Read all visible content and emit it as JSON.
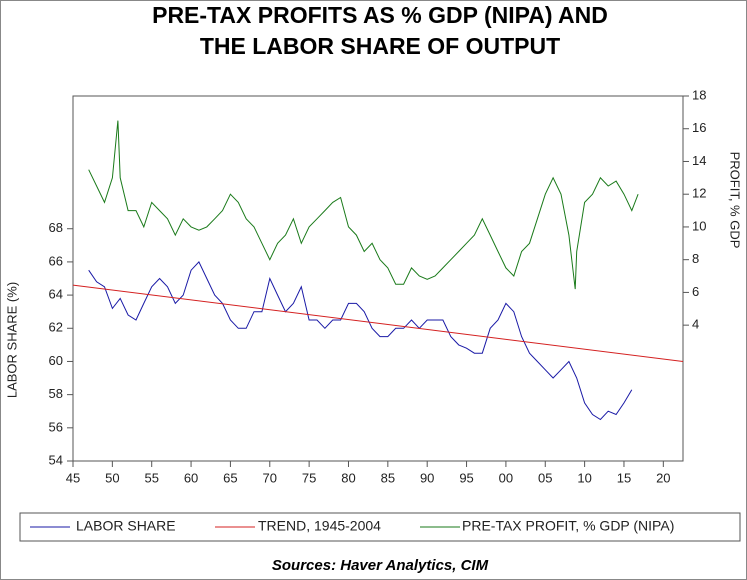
{
  "chart_data": {
    "type": "line",
    "title": [
      "PRE-TAX PROFITS AS % GDP (NIPA) AND",
      "THE LABOR SHARE OF OUTPUT"
    ],
    "ylabel": "LABOR SHARE (%)",
    "y2label": "PROFIT, % GDP",
    "source": "Sources:  Haver Analytics, CIM",
    "xlim": [
      1945,
      2022.5
    ],
    "xticks": [
      {
        "value": 1945,
        "label": "45"
      },
      {
        "value": 1950,
        "label": "50"
      },
      {
        "value": 1955,
        "label": "55"
      },
      {
        "value": 1960,
        "label": "60"
      },
      {
        "value": 1965,
        "label": "65"
      },
      {
        "value": 1970,
        "label": "70"
      },
      {
        "value": 1975,
        "label": "75"
      },
      {
        "value": 1980,
        "label": "80"
      },
      {
        "value": 1985,
        "label": "85"
      },
      {
        "value": 1990,
        "label": "90"
      },
      {
        "value": 1995,
        "label": "95"
      },
      {
        "value": 2000,
        "label": "00"
      },
      {
        "value": 2005,
        "label": "05"
      },
      {
        "value": 2010,
        "label": "10"
      },
      {
        "value": 2015,
        "label": "15"
      },
      {
        "value": 2020,
        "label": "20"
      }
    ],
    "ylim": [
      54,
      76
    ],
    "yticks": [
      54,
      56,
      58,
      60,
      62,
      64,
      66,
      68
    ],
    "y2lim": [
      -4.3,
      18
    ],
    "y2ticks": [
      4,
      6,
      8,
      10,
      12,
      14,
      16,
      18
    ],
    "series": [
      {
        "name": "LABOR SHARE",
        "color": "#1a1aa6",
        "x": [
          1947,
          1948,
          1949,
          1950,
          1951,
          1952,
          1953,
          1954,
          1955,
          1956,
          1957,
          1958,
          1959,
          1960,
          1961,
          1962,
          1963,
          1964,
          1965,
          1966,
          1967,
          1968,
          1969,
          1970,
          1971,
          1972,
          1973,
          1974,
          1975,
          1976,
          1977,
          1978,
          1979,
          1980,
          1981,
          1982,
          1983,
          1984,
          1985,
          1986,
          1987,
          1988,
          1989,
          1990,
          1991,
          1992,
          1993,
          1994,
          1995,
          1996,
          1997,
          1998,
          1999,
          2000,
          2001,
          2002,
          2003,
          2004,
          2005,
          2006,
          2007,
          2008,
          2009,
          2010,
          2011,
          2012,
          2013,
          2014,
          2015,
          2016
        ],
        "values": [
          65.5,
          64.8,
          64.5,
          63.2,
          63.8,
          62.8,
          62.5,
          63.5,
          64.5,
          65.0,
          64.5,
          63.5,
          64.0,
          65.5,
          66.0,
          65.0,
          64.0,
          63.5,
          62.5,
          62.0,
          62.0,
          63.0,
          63.0,
          65.0,
          64.0,
          63.0,
          63.5,
          64.5,
          62.5,
          62.5,
          62.0,
          62.5,
          62.5,
          63.5,
          63.5,
          63.0,
          62.0,
          61.5,
          61.5,
          62.0,
          62.0,
          62.5,
          62.0,
          62.5,
          62.5,
          62.5,
          61.5,
          61.0,
          60.8,
          60.5,
          60.5,
          62.0,
          62.5,
          63.5,
          63.0,
          61.5,
          60.5,
          60.0,
          59.5,
          59.0,
          59.5,
          60.0,
          59.0,
          57.5,
          56.8,
          56.5,
          57.0,
          56.8,
          57.5,
          58.3
        ]
      },
      {
        "name": "TREND, 1945-2004",
        "color": "#d42020",
        "x": [
          1945,
          2022.5
        ],
        "values": [
          64.6,
          60.0
        ]
      },
      {
        "name": "PRE-TAX PROFIT, % GDP (NIPA)",
        "color": "#1a7a1a",
        "axis": "y2",
        "x": [
          1947,
          1948,
          1949,
          1950,
          1950.7,
          1951,
          1952,
          1953,
          1954,
          1955,
          1956,
          1957,
          1958,
          1959,
          1960,
          1961,
          1962,
          1963,
          1964,
          1965,
          1966,
          1967,
          1968,
          1969,
          1970,
          1971,
          1972,
          1973,
          1974,
          1975,
          1976,
          1977,
          1978,
          1979,
          1980,
          1981,
          1982,
          1983,
          1984,
          1985,
          1986,
          1987,
          1988,
          1989,
          1990,
          1991,
          1992,
          1993,
          1994,
          1995,
          1996,
          1997,
          1998,
          1999,
          2000,
          2001,
          2002,
          2003,
          2004,
          2005,
          2006,
          2007,
          2008,
          2008.8,
          2009,
          2010,
          2011,
          2012,
          2013,
          2014,
          2015,
          2016,
          2016.8
        ],
        "values": [
          13.5,
          12.5,
          11.5,
          13.0,
          16.5,
          13.0,
          11.0,
          11.0,
          10.0,
          11.5,
          11.0,
          10.5,
          9.5,
          10.5,
          10.0,
          9.8,
          10.0,
          10.5,
          11.0,
          12.0,
          11.5,
          10.5,
          10.0,
          9.0,
          8.0,
          9.0,
          9.5,
          10.5,
          9.0,
          10.0,
          10.5,
          11.0,
          11.5,
          11.8,
          10.0,
          9.5,
          8.5,
          9.0,
          8.0,
          7.5,
          6.5,
          6.5,
          7.5,
          7.0,
          6.8,
          7.0,
          7.5,
          8.0,
          8.5,
          9.0,
          9.5,
          10.5,
          9.5,
          8.5,
          7.5,
          7.0,
          8.5,
          9.0,
          10.5,
          12.0,
          13.0,
          12.0,
          9.5,
          6.2,
          8.5,
          11.5,
          12.0,
          13.0,
          12.5,
          12.8,
          12.0,
          11.0,
          12.0
        ]
      }
    ]
  }
}
